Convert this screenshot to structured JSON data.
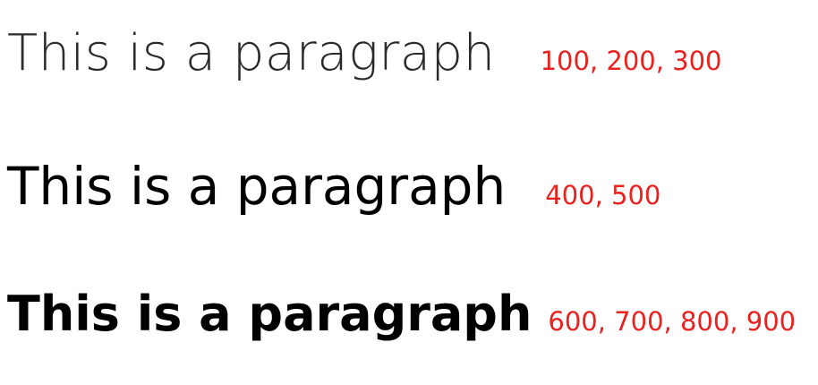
{
  "examples": [
    {
      "text": "This is a paragraph",
      "weights_label": "100, 200, 300",
      "weight_group": "light"
    },
    {
      "text": "This is a paragraph",
      "weights_label": "400, 500",
      "weight_group": "regular"
    },
    {
      "text": "This is a paragraph",
      "weights_label": "600, 700, 800, 900",
      "weight_group": "bold"
    }
  ],
  "colors": {
    "text": "#000000",
    "annotation": "#e8231f",
    "background": "#ffffff"
  }
}
